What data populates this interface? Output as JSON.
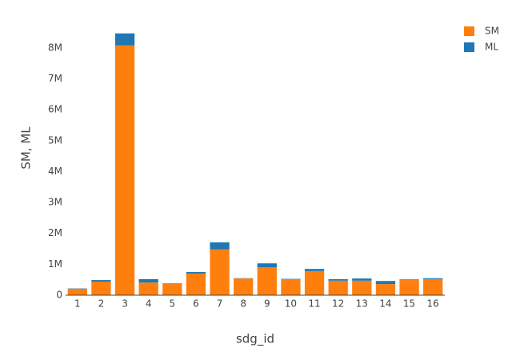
{
  "chart_data": {
    "type": "stacked_bar",
    "x_label": "sdg_id",
    "y_label": "SM, ML",
    "categories": [
      "1",
      "2",
      "3",
      "4",
      "5",
      "6",
      "7",
      "8",
      "9",
      "10",
      "11",
      "12",
      "13",
      "14",
      "15",
      "16"
    ],
    "series": [
      {
        "name": "SM",
        "color": "#ff7f0e",
        "values": [
          210000,
          440000,
          8080000,
          410000,
          360000,
          700000,
          1480000,
          540000,
          900000,
          520000,
          780000,
          470000,
          470000,
          360000,
          490000,
          520000
        ]
      },
      {
        "name": "ML",
        "color": "#1f77b4",
        "values": [
          10000,
          50000,
          390000,
          110000,
          20000,
          50000,
          230000,
          10000,
          130000,
          10000,
          70000,
          50000,
          70000,
          100000,
          20000,
          30000
        ]
      }
    ],
    "ylim": [
      0,
      8800000
    ],
    "yticks": [
      0,
      {
        "value": 1000000,
        "label": "1M"
      },
      {
        "value": 2000000,
        "label": "2M"
      },
      {
        "value": 3000000,
        "label": "3M"
      },
      {
        "value": 4000000,
        "label": "4M"
      },
      {
        "value": 5000000,
        "label": "5M"
      },
      {
        "value": 6000000,
        "label": "6M"
      },
      {
        "value": 7000000,
        "label": "7M"
      },
      {
        "value": 8000000,
        "label": "8M"
      }
    ],
    "legend": "top-right"
  }
}
